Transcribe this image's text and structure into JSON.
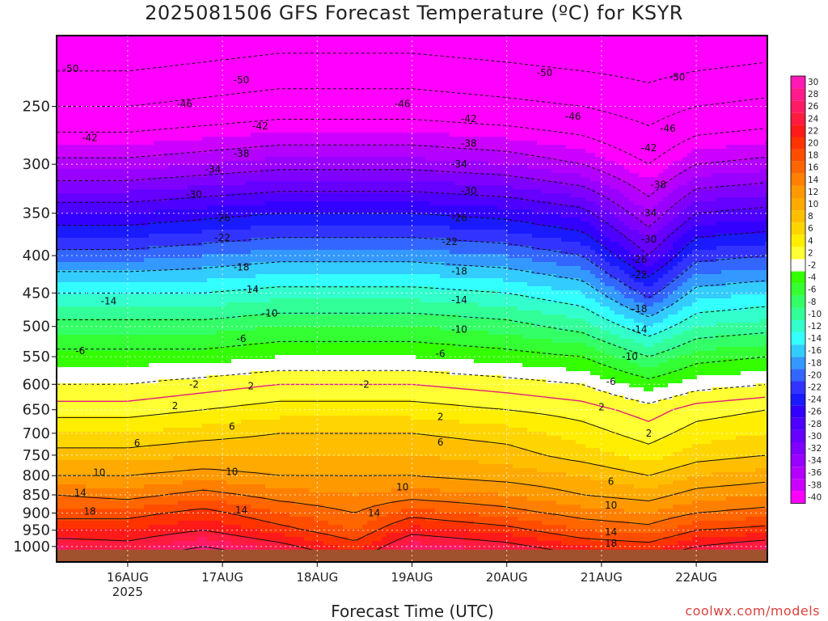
{
  "header": {
    "title": "2025081506 GFS Forecast Temperature (ºC) for KSYR"
  },
  "footer": {
    "credit": "coolwx.com/models"
  },
  "chart_data": {
    "type": "heatmap",
    "title": "2025081506 GFS Forecast Temperature (ºC) for KSYR",
    "xlabel": "Forecast Time (UTC)",
    "ylabel": "",
    "y_scale": "log-pressure, inverted",
    "ylim": [
      1050,
      200
    ],
    "y_ticks": [
      250,
      300,
      350,
      400,
      450,
      500,
      550,
      600,
      650,
      700,
      750,
      800,
      850,
      900,
      950,
      1000
    ],
    "x_ticks": [
      {
        "day": 16,
        "label": "16AUG",
        "sub": "2025"
      },
      {
        "day": 17,
        "label": "17AUG",
        "sub": ""
      },
      {
        "day": 18,
        "label": "18AUG",
        "sub": ""
      },
      {
        "day": 19,
        "label": "19AUG",
        "sub": ""
      },
      {
        "day": 20,
        "label": "20AUG",
        "sub": ""
      },
      {
        "day": 21,
        "label": "21AUG",
        "sub": ""
      },
      {
        "day": 22,
        "label": "22AUG",
        "sub": ""
      }
    ],
    "xlim_days": [
      15.25,
      22.75
    ],
    "grid": true,
    "ground_level_hPa": 1010,
    "colorbar": {
      "labels": [
        "30",
        "28",
        "26",
        "24",
        "22",
        "20",
        "18",
        "16",
        "14",
        "12",
        "10",
        "8",
        "6",
        "4",
        "2",
        "-2",
        "-4",
        "-6",
        "-8",
        "-10",
        "-12",
        "-14",
        "-16",
        "-18",
        "-20",
        "-22",
        "-24",
        "-26",
        "-28",
        "-30",
        "-32",
        "-34",
        "-36",
        "-38",
        "-40"
      ],
      "colors": [
        "#ff1ab3",
        "#ff1a8c",
        "#ff1a66",
        "#ff1a40",
        "#ff1a1a",
        "#ff3300",
        "#ff4d00",
        "#ff6600",
        "#ff8000",
        "#ff9900",
        "#ffaa00",
        "#ffbf00",
        "#ffd500",
        "#ffee00",
        "#ffff33",
        "#ffffff",
        "#33ff00",
        "#33ff33",
        "#33ff66",
        "#33ff99",
        "#33ffcc",
        "#33ffff",
        "#33ccff",
        "#3399ff",
        "#3366ff",
        "#3333ff",
        "#1a1aff",
        "#3300ff",
        "#4d00ff",
        "#6600ff",
        "#8000ff",
        "#9900ff",
        "#b300ff",
        "#cc00ff",
        "#ff00ff"
      ]
    },
    "profile_levels_hPa": [
      1000,
      950,
      900,
      850,
      800,
      750,
      700,
      650,
      600,
      550,
      500,
      450,
      400,
      350,
      300,
      250,
      200
    ],
    "temperature_profiles_C": [
      {
        "day": 15.25,
        "t": [
          24,
          20,
          17,
          14,
          10,
          7,
          4,
          1,
          -2,
          -5,
          -9,
          -14,
          -21,
          -28,
          -37,
          -46,
          -54
        ]
      },
      {
        "day": 16.0,
        "t": [
          23,
          20,
          17,
          13,
          10,
          7,
          4,
          1,
          -2,
          -5,
          -9,
          -14,
          -21,
          -28,
          -37,
          -46,
          -54
        ]
      },
      {
        "day": 16.8,
        "t": [
          26,
          22,
          19,
          15,
          11,
          8,
          5,
          2,
          -1,
          -5,
          -9,
          -14,
          -20,
          -27,
          -36,
          -45,
          -53
        ]
      },
      {
        "day": 17.6,
        "t": [
          23,
          19,
          16,
          13,
          10,
          8,
          6,
          3,
          0,
          -4,
          -8,
          -13,
          -19,
          -26,
          -35,
          -44,
          -52
        ]
      },
      {
        "day": 18.4,
        "t": [
          19,
          16,
          14,
          12,
          10,
          8,
          6,
          3,
          0,
          -4,
          -8,
          -13,
          -19,
          -26,
          -35,
          -44,
          -52
        ]
      },
      {
        "day": 19.0,
        "t": [
          25,
          21,
          17,
          13,
          10,
          8,
          6,
          3,
          0,
          -4,
          -8,
          -13,
          -19,
          -26,
          -35,
          -44,
          -52
        ]
      },
      {
        "day": 20.0,
        "t": [
          23,
          19,
          15,
          12,
          9,
          7,
          5,
          2,
          -1,
          -5,
          -9,
          -14,
          -20,
          -27,
          -36,
          -45,
          -53
        ]
      },
      {
        "day": 20.8,
        "t": [
          20,
          16,
          13,
          10,
          8,
          5,
          3,
          1,
          -2,
          -6,
          -11,
          -16,
          -22,
          -29,
          -38,
          -46,
          -54
        ]
      },
      {
        "day": 21.5,
        "t": [
          19,
          15,
          12,
          9,
          6,
          3,
          1,
          -1,
          -5,
          -10,
          -16,
          -23,
          -30,
          -36,
          -42,
          -48,
          -54
        ]
      },
      {
        "day": 22.0,
        "t": [
          22,
          18,
          14,
          11,
          8,
          5,
          3,
          1,
          -3,
          -7,
          -12,
          -17,
          -23,
          -30,
          -38,
          -46,
          -54
        ]
      },
      {
        "day": 22.75,
        "t": [
          24,
          19,
          15,
          12,
          9,
          6,
          4,
          2,
          -2,
          -6,
          -11,
          -16,
          -22,
          -29,
          -37,
          -45,
          -53
        ]
      }
    ],
    "contour_labels": [
      {
        "v": "-50",
        "day": 15.4,
        "p": 222
      },
      {
        "v": "-50",
        "day": 17.2,
        "p": 230
      },
      {
        "v": "-50",
        "day": 20.4,
        "p": 225
      },
      {
        "v": "-50",
        "day": 21.8,
        "p": 228
      },
      {
        "v": "-46",
        "day": 16.6,
        "p": 248
      },
      {
        "v": "-46",
        "day": 18.9,
        "p": 248
      },
      {
        "v": "-46",
        "day": 20.7,
        "p": 258
      },
      {
        "v": "-46",
        "day": 21.7,
        "p": 268
      },
      {
        "v": "-42",
        "day": 15.6,
        "p": 276
      },
      {
        "v": "-42",
        "day": 17.4,
        "p": 266
      },
      {
        "v": "-42",
        "day": 19.6,
        "p": 260
      },
      {
        "v": "-42",
        "day": 21.5,
        "p": 285
      },
      {
        "v": "-38",
        "day": 15.0,
        "p": 292
      },
      {
        "v": "-38",
        "day": 17.2,
        "p": 290
      },
      {
        "v": "-38",
        "day": 19.6,
        "p": 281
      },
      {
        "v": "-38",
        "day": 21.6,
        "p": 320
      },
      {
        "v": "-34",
        "day": 14.6,
        "p": 325
      },
      {
        "v": "-34",
        "day": 16.9,
        "p": 305
      },
      {
        "v": "-34",
        "day": 19.5,
        "p": 300
      },
      {
        "v": "-34",
        "day": 21.5,
        "p": 350
      },
      {
        "v": "-30",
        "day": 14.7,
        "p": 348
      },
      {
        "v": "-30",
        "day": 16.7,
        "p": 330
      },
      {
        "v": "-30",
        "day": 19.6,
        "p": 326
      },
      {
        "v": "-30",
        "day": 21.5,
        "p": 380
      },
      {
        "v": "-26",
        "day": 15.0,
        "p": 358
      },
      {
        "v": "-26",
        "day": 17.0,
        "p": 355
      },
      {
        "v": "-26",
        "day": 19.5,
        "p": 355
      },
      {
        "v": "-26",
        "day": 21.4,
        "p": 405
      },
      {
        "v": "-22",
        "day": 14.8,
        "p": 385
      },
      {
        "v": "-22",
        "day": 17.0,
        "p": 378
      },
      {
        "v": "-22",
        "day": 19.4,
        "p": 383
      },
      {
        "v": "-22",
        "day": 21.4,
        "p": 425
      },
      {
        "v": "-18",
        "day": 15.2,
        "p": 425
      },
      {
        "v": "-18",
        "day": 17.2,
        "p": 415
      },
      {
        "v": "-18",
        "day": 19.5,
        "p": 420
      },
      {
        "v": "-18",
        "day": 21.4,
        "p": 473
      },
      {
        "v": "-14",
        "day": 15.8,
        "p": 462
      },
      {
        "v": "-14",
        "day": 17.3,
        "p": 445
      },
      {
        "v": "-14",
        "day": 19.5,
        "p": 460
      },
      {
        "v": "-14",
        "day": 21.4,
        "p": 505
      },
      {
        "v": "-10",
        "day": 15.2,
        "p": 505
      },
      {
        "v": "-10",
        "day": 17.5,
        "p": 480
      },
      {
        "v": "-10",
        "day": 19.5,
        "p": 505
      },
      {
        "v": "-10",
        "day": 21.3,
        "p": 550
      },
      {
        "v": "-6",
        "day": 15.5,
        "p": 540
      },
      {
        "v": "-6",
        "day": 17.2,
        "p": 520
      },
      {
        "v": "-6",
        "day": 19.3,
        "p": 545
      },
      {
        "v": "-6",
        "day": 21.1,
        "p": 595
      },
      {
        "v": "-2",
        "day": 15.1,
        "p": 590
      },
      {
        "v": "-2",
        "day": 16.7,
        "p": 600
      },
      {
        "v": "-2",
        "day": 18.5,
        "p": 600
      },
      {
        "v": "2",
        "day": 16.5,
        "p": 642
      },
      {
        "v": "2",
        "day": 17.3,
        "p": 603
      },
      {
        "v": "2",
        "day": 19.3,
        "p": 665
      },
      {
        "v": "2",
        "day": 21.0,
        "p": 645
      },
      {
        "v": "2",
        "day": 21.5,
        "p": 700
      },
      {
        "v": "6",
        "day": 16.1,
        "p": 722
      },
      {
        "v": "6",
        "day": 17.1,
        "p": 685
      },
      {
        "v": "6",
        "day": 19.3,
        "p": 720
      },
      {
        "v": "6",
        "day": 21.1,
        "p": 815
      },
      {
        "v": "10",
        "day": 15.7,
        "p": 792
      },
      {
        "v": "10",
        "day": 17.1,
        "p": 790
      },
      {
        "v": "10",
        "day": 18.9,
        "p": 830
      },
      {
        "v": "10",
        "day": 21.1,
        "p": 878
      },
      {
        "v": "14",
        "day": 15.5,
        "p": 845
      },
      {
        "v": "14",
        "day": 17.2,
        "p": 892
      },
      {
        "v": "14",
        "day": 18.6,
        "p": 900
      },
      {
        "v": "14",
        "day": 21.1,
        "p": 955
      },
      {
        "v": "18",
        "day": 15.6,
        "p": 895
      },
      {
        "v": "18",
        "day": 21.1,
        "p": 990
      }
    ]
  }
}
